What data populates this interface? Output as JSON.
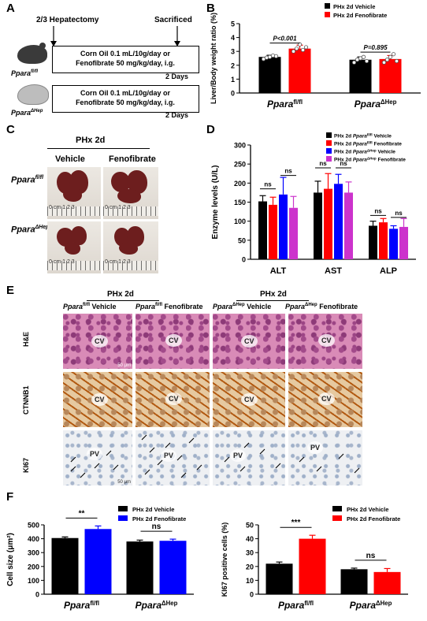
{
  "panel_labels": {
    "A": "A",
    "B": "B",
    "C": "C",
    "D": "D",
    "E": "E",
    "F": "F"
  },
  "panelA": {
    "hepatectomy": "2/3 Hepatectomy",
    "sacrificed": "Sacrificed",
    "treatment_line1": "Corn Oil 0.1 mL/10g/day or",
    "treatment_line2": "Fenofibrate 50 mg/kg/day, i.g.",
    "duration": "2 Days",
    "mouse1_gene": "Ppara",
    "mouse1_sup": "fl/fl",
    "mouse2_gene": "Ppara",
    "mouse2_sup": "ΔHep"
  },
  "panelC": {
    "header": "PHx 2d",
    "col1": "Vehicle",
    "col2": "Fenofibrate",
    "row1_gene": "Ppara",
    "row1_sup": "fl/fl",
    "row2_gene": "Ppara",
    "row2_sup": "ΔHep",
    "ruler_text": "0 cm  1  2  3"
  },
  "panelE": {
    "group1": "PHx 2d",
    "group2": "PHx 2d",
    "col1_gene": "Ppara",
    "col1_sup": "fl/fl",
    "col1_tx": "Vehicle",
    "col2_gene": "Ppara",
    "col2_sup": "fl/fl",
    "col2_tx": "Fenofibrate",
    "col3_gene": "Ppara",
    "col3_sup": "ΔHep",
    "col3_tx": "Vehicle",
    "col4_gene": "Ppara",
    "col4_sup": "ΔHep",
    "col4_tx": "Fenofibrate",
    "row1": "H&E",
    "row2": "CTNNB1",
    "row3": "KI67",
    "cv": "CV",
    "pv": "PV",
    "scale_he": "50 μm",
    "scale_ki": "50 μm"
  },
  "chart_data": [
    {
      "id": "B",
      "type": "bar",
      "ylabel": "Liver/Body weight ratio (%)",
      "ylim": [
        0,
        5
      ],
      "yticks": [
        0,
        1,
        2,
        3,
        4,
        5
      ],
      "categories": [
        {
          "gene": "Ppara",
          "sup": "fl/fl"
        },
        {
          "gene": "Ppara",
          "sup": "ΔHep"
        }
      ],
      "series": [
        {
          "name": "PHx 2d Vehicle",
          "color": "#000000",
          "values": [
            2.6,
            2.4
          ],
          "err": [
            0.12,
            0.2
          ]
        },
        {
          "name": "PHx 2d Fenofibrate",
          "color": "#ff0000",
          "values": [
            3.2,
            2.45
          ],
          "err": [
            0.25,
            0.25
          ]
        }
      ],
      "annotations": [
        "P<0.001",
        "P=0.895"
      ]
    },
    {
      "id": "D",
      "type": "bar",
      "ylabel": "Enzyme levels (U/L)",
      "ylim": [
        0,
        300
      ],
      "yticks": [
        0,
        50,
        100,
        150,
        200,
        250,
        300
      ],
      "categories": [
        "ALT",
        "AST",
        "ALP"
      ],
      "series": [
        {
          "name_pre": "PHx 2d ",
          "name_gene": "Ppara",
          "name_sup": "fl/fl",
          "name_post": " Vehicle",
          "color": "#000000",
          "values": [
            152,
            175,
            88
          ],
          "err": [
            15,
            30,
            12
          ]
        },
        {
          "name_pre": "PHx 2d ",
          "name_gene": "Ppara",
          "name_sup": "fl/fl",
          "name_post": " Fenofibrate",
          "color": "#ff0000",
          "values": [
            143,
            185,
            97
          ],
          "err": [
            20,
            40,
            10
          ]
        },
        {
          "name_pre": "PHx 2d ",
          "name_gene": "Ppara",
          "name_sup": "ΔHep",
          "name_post": " Vehicle",
          "color": "#0000ff",
          "values": [
            170,
            198,
            80
          ],
          "err": [
            45,
            25,
            8
          ]
        },
        {
          "name_pre": "PHx 2d ",
          "name_gene": "Ppara",
          "name_sup": "ΔHep",
          "name_post": " Fenofibrate",
          "color": "#cc33cc",
          "values": [
            135,
            175,
            85
          ],
          "err": [
            30,
            28,
            22
          ]
        }
      ],
      "annotations": [
        "ns",
        "ns",
        "ns",
        "ns",
        "ns",
        "ns"
      ]
    },
    {
      "id": "F1",
      "type": "bar",
      "ylabel": "Cell size (μm²)",
      "ylim": [
        0,
        500
      ],
      "yticks": [
        0,
        100,
        200,
        300,
        400,
        500
      ],
      "categories": [
        {
          "gene": "Ppara",
          "sup": "fl/fl"
        },
        {
          "gene": "Ppara",
          "sup": "ΔHep"
        }
      ],
      "series": [
        {
          "name": "PHx 2d Vehicle",
          "color": "#000000",
          "values": [
            405,
            380
          ],
          "err": [
            8,
            10
          ]
        },
        {
          "name": "PHx 2d Fenofibrate",
          "color": "#0000ff",
          "values": [
            470,
            385
          ],
          "err": [
            22,
            12
          ]
        }
      ],
      "annotations": [
        "**",
        "ns"
      ]
    },
    {
      "id": "F2",
      "type": "bar",
      "ylabel": "KI67 positive cells (%)",
      "ylim": [
        0,
        50
      ],
      "yticks": [
        0,
        10,
        20,
        30,
        40,
        50
      ],
      "categories": [
        {
          "gene": "Ppara",
          "sup": "fl/fl"
        },
        {
          "gene": "Ppara",
          "sup": "ΔHep"
        }
      ],
      "series": [
        {
          "name": "PHx 2d Vehicle",
          "color": "#000000",
          "values": [
            22,
            18
          ],
          "err": [
            1.2,
            0.8
          ]
        },
        {
          "name": "PHx 2d Fenofibrate",
          "color": "#ff0000",
          "values": [
            40,
            16
          ],
          "err": [
            2.5,
            2.5
          ]
        }
      ],
      "annotations": [
        "***",
        "ns"
      ]
    }
  ]
}
